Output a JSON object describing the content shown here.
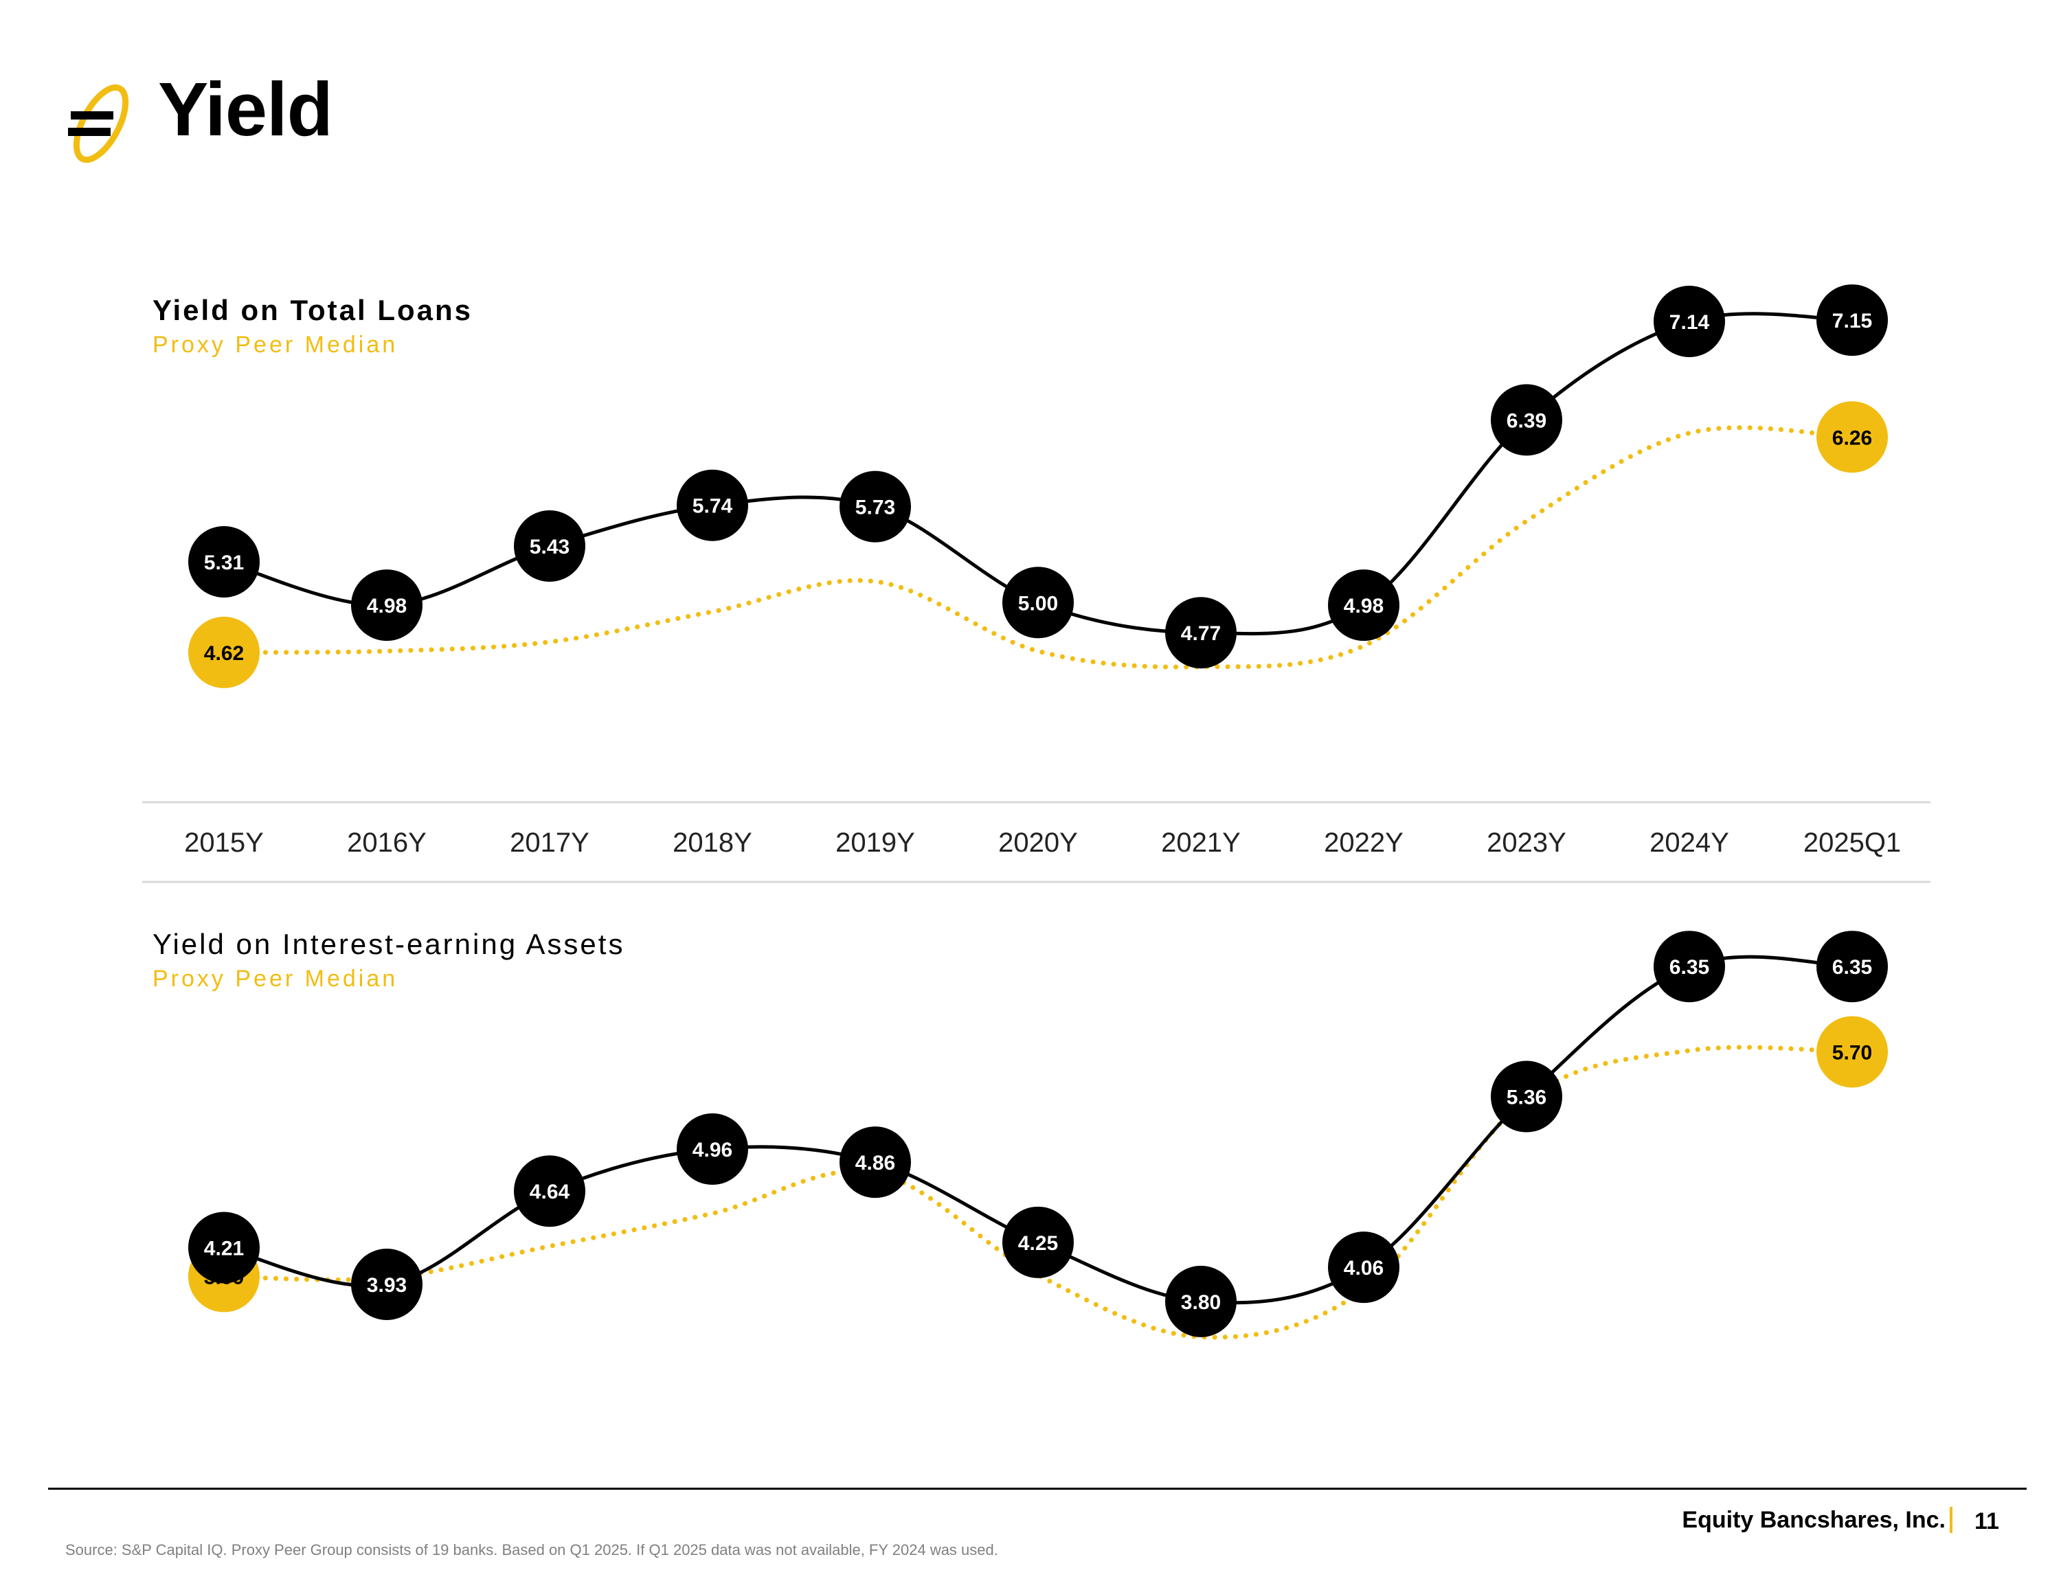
{
  "page": {
    "title": "Yield",
    "logo_icon": "equity-bank-logo-icon"
  },
  "colors": {
    "company": "#000000",
    "peer": "#f2bd12",
    "axis": "#d9d9d9"
  },
  "chart_data": [
    {
      "type": "line",
      "title": "Yield on Total Loans",
      "subtitle": "Proxy Peer Median",
      "categories": [
        "2015Y",
        "2016Y",
        "2017Y",
        "2018Y",
        "2019Y",
        "2020Y",
        "2021Y",
        "2022Y",
        "2023Y",
        "2024Y",
        "2025Q1"
      ],
      "series": [
        {
          "values": [
            5.31,
            4.98,
            5.43,
            5.74,
            5.73,
            5.0,
            4.77,
            4.98,
            6.39,
            7.14,
            7.15
          ],
          "style": "solid",
          "color": "#000000"
        },
        {
          "name": "Proxy Peer Median",
          "values": [
            4.62,
            null,
            null,
            null,
            null,
            null,
            null,
            null,
            null,
            null,
            6.26
          ],
          "labeled_points": [
            0,
            10
          ],
          "style": "dotted",
          "color": "#f2bd12"
        }
      ],
      "peer_curve_estimate": [
        4.62,
        4.63,
        4.7,
        4.93,
        5.16,
        4.63,
        4.51,
        4.67,
        5.62,
        6.29,
        6.26
      ],
      "ylim": [
        3.6,
        7.6
      ],
      "grid": false,
      "xlabel": "",
      "ylabel": ""
    },
    {
      "type": "line",
      "title": "Yield on Interest-earning Assets",
      "subtitle": "Proxy Peer Median",
      "categories": [
        "2015Y",
        "2016Y",
        "2017Y",
        "2018Y",
        "2019Y",
        "2020Y",
        "2021Y",
        "2022Y",
        "2023Y",
        "2024Y",
        "2025Q1"
      ],
      "series": [
        {
          "values": [
            4.21,
            3.93,
            4.64,
            4.96,
            4.86,
            4.25,
            3.8,
            4.06,
            5.36,
            6.35,
            6.35
          ],
          "style": "solid",
          "color": "#000000"
        },
        {
          "name": "Proxy Peer Median",
          "values": [
            3.99,
            null,
            null,
            null,
            null,
            null,
            null,
            null,
            null,
            null,
            5.7
          ],
          "labeled_points": [
            0,
            10
          ],
          "style": "dotted",
          "color": "#f2bd12"
        }
      ],
      "peer_curve_estimate": [
        3.99,
        3.98,
        4.22,
        4.47,
        4.78,
        4.0,
        3.53,
        3.89,
        5.34,
        5.71,
        5.7
      ],
      "ylim": [
        2.9,
        6.9
      ],
      "grid": false,
      "xlabel": "",
      "ylabel": ""
    }
  ],
  "footer": {
    "company": "Equity Bancshares, Inc.",
    "page_number": "11",
    "source": "Source: S&P Capital IQ. Proxy Peer Group consists of 19 banks.  Based on Q1 2025. If Q1 2025 data was not available, FY 2024 was used."
  }
}
